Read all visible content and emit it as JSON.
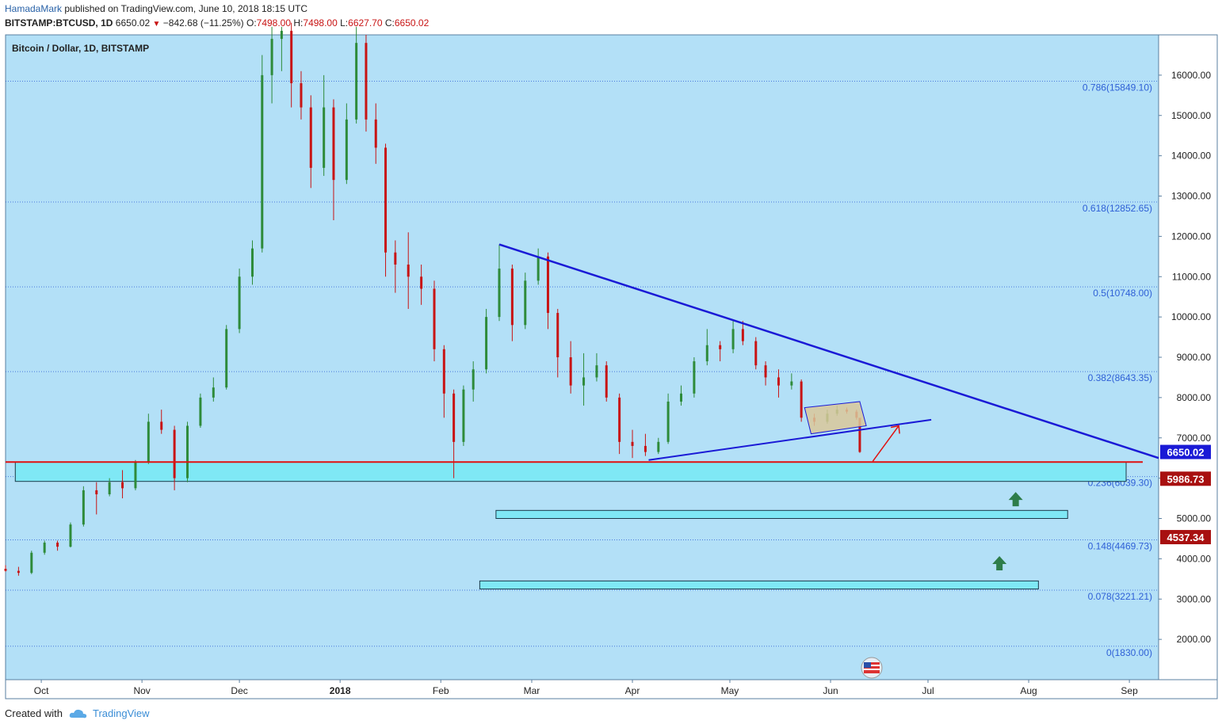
{
  "header": {
    "author": "HamadaMark",
    "published": "published on TradingView.com, June 10, 2018 18:15 UTC",
    "symbol": "BITSTAMP:BTCUSD, 1D",
    "last": "6650.02",
    "change": "−842.68 (−11.25%)",
    "o_label": "O:",
    "o_value": "7498.00",
    "h_label": "H:",
    "h_value": "7498.00",
    "l_label": "L:",
    "l_value": "6627.70",
    "c_label": "C:",
    "c_value": "6650.02"
  },
  "footer": {
    "created_with": "Created with",
    "brand": "TradingView"
  },
  "colors": {
    "plot_bg": "#b3e0f7",
    "candle_up": "#2e8b3a",
    "candle_down": "#c81414",
    "trendline": "#1a1ad6",
    "support_line": "#e01010",
    "zone_fill": "#7fe8f5",
    "fib_label": "#2e5fd6",
    "arrow_green": "#2e7d4a",
    "price_tag_current": "#1a1ad6",
    "price_tag_red": "#a81010",
    "consolidation_fill": "#d9c79a"
  },
  "chart_data": {
    "type": "candlestick",
    "title": "Bitcoin / Dollar, 1D, BITSTAMP",
    "ylim": [
      1000,
      17000
    ],
    "y_ticks": [
      2000,
      3000,
      4000,
      5000,
      6000,
      7000,
      8000,
      9000,
      10000,
      11000,
      12000,
      13000,
      14000,
      15000,
      16000
    ],
    "y_tick_labels": [
      "2000.00",
      "3000.00",
      "4000.00",
      "5000.00",
      "6000.00",
      "7000.00",
      "8000.00",
      "9000.00",
      "10000.00",
      "11000.00",
      "12000.00",
      "13000.00",
      "14000.00",
      "15000.00",
      "16000.00"
    ],
    "x_range": [
      "2017-09-20",
      "2018-09-10"
    ],
    "x_ticks": [
      {
        "date": "2017-10-01",
        "label": "Oct"
      },
      {
        "date": "2017-11-01",
        "label": "Nov"
      },
      {
        "date": "2017-12-01",
        "label": "Dec"
      },
      {
        "date": "2018-01-01",
        "label": "2018"
      },
      {
        "date": "2018-02-01",
        "label": "Feb"
      },
      {
        "date": "2018-03-01",
        "label": "Mar"
      },
      {
        "date": "2018-04-01",
        "label": "Apr"
      },
      {
        "date": "2018-05-01",
        "label": "May"
      },
      {
        "date": "2018-06-01",
        "label": "Jun"
      },
      {
        "date": "2018-07-01",
        "label": "Jul"
      },
      {
        "date": "2018-08-01",
        "label": "Aug"
      },
      {
        "date": "2018-09-01",
        "label": "Sep"
      }
    ],
    "fib_levels": [
      {
        "price": 15849.1,
        "label": "0.786(15849.10)"
      },
      {
        "price": 12852.65,
        "label": "0.618(12852.65)"
      },
      {
        "price": 10748.0,
        "label": "0.5(10748.00)"
      },
      {
        "price": 8643.35,
        "label": "0.382(8643.35)"
      },
      {
        "price": 6039.3,
        "label": "0.236(6039.30)"
      },
      {
        "price": 4469.73,
        "label": "0.148(4469.73)"
      },
      {
        "price": 3221.21,
        "label": "0.078(3221.21)"
      },
      {
        "price": 1830.0,
        "label": "0(1830.00)"
      }
    ],
    "price_tags": [
      {
        "price": 6650.02,
        "label": "6650.02",
        "kind": "current"
      },
      {
        "price": 5986.73,
        "label": "5986.73",
        "kind": "red"
      },
      {
        "price": 4537.34,
        "label": "4537.34",
        "kind": "red"
      }
    ],
    "candles": [
      [
        "2017-09-20",
        3750,
        3840,
        3680,
        3700
      ],
      [
        "2017-09-24",
        3700,
        3800,
        3580,
        3650
      ],
      [
        "2017-09-28",
        3650,
        4200,
        3620,
        4150
      ],
      [
        "2017-10-02",
        4150,
        4450,
        4100,
        4400
      ],
      [
        "2017-10-06",
        4400,
        4450,
        4200,
        4300
      ],
      [
        "2017-10-10",
        4300,
        4900,
        4280,
        4850
      ],
      [
        "2017-10-14",
        4850,
        5800,
        4800,
        5700
      ],
      [
        "2017-10-18",
        5700,
        5900,
        5100,
        5600
      ],
      [
        "2017-10-22",
        5600,
        6000,
        5550,
        5900
      ],
      [
        "2017-10-26",
        5900,
        6200,
        5500,
        5750
      ],
      [
        "2017-10-30",
        5750,
        6450,
        5700,
        6400
      ],
      [
        "2017-11-03",
        6400,
        7600,
        6350,
        7400
      ],
      [
        "2017-11-07",
        7400,
        7700,
        7100,
        7200
      ],
      [
        "2017-11-11",
        7200,
        7300,
        5700,
        6000
      ],
      [
        "2017-11-15",
        6000,
        7400,
        5900,
        7300
      ],
      [
        "2017-11-19",
        7300,
        8100,
        7250,
        8000
      ],
      [
        "2017-11-23",
        8000,
        8500,
        7900,
        8250
      ],
      [
        "2017-11-27",
        8250,
        9800,
        8200,
        9700
      ],
      [
        "2017-12-01",
        9700,
        11200,
        9600,
        11000
      ],
      [
        "2017-12-05",
        11000,
        11900,
        10800,
        11700
      ],
      [
        "2017-12-08",
        11700,
        16500,
        11600,
        16000
      ],
      [
        "2017-12-11",
        16000,
        17200,
        15300,
        16900
      ],
      [
        "2017-12-14",
        16900,
        17200,
        16100,
        17100
      ],
      [
        "2017-12-17",
        17100,
        17300,
        15200,
        15800
      ],
      [
        "2017-12-20",
        15800,
        16100,
        14900,
        15200
      ],
      [
        "2017-12-23",
        15200,
        15500,
        13200,
        13700
      ],
      [
        "2017-12-27",
        13700,
        16000,
        13500,
        15200
      ],
      [
        "2017-12-30",
        15200,
        15400,
        12400,
        13400
      ],
      [
        "2018-01-03",
        13400,
        15300,
        13300,
        14900
      ],
      [
        "2018-01-06",
        14900,
        17200,
        14800,
        16800
      ],
      [
        "2018-01-09",
        16800,
        17000,
        14600,
        14900
      ],
      [
        "2018-01-12",
        14900,
        15300,
        13800,
        14200
      ],
      [
        "2018-01-15",
        14200,
        14300,
        11000,
        11600
      ],
      [
        "2018-01-18",
        11600,
        11900,
        10600,
        11300
      ],
      [
        "2018-01-22",
        11300,
        12100,
        10200,
        11000
      ],
      [
        "2018-01-26",
        11000,
        11300,
        10300,
        10700
      ],
      [
        "2018-01-30",
        10700,
        10900,
        8900,
        9200
      ],
      [
        "2018-02-02",
        9200,
        9300,
        7500,
        8100
      ],
      [
        "2018-02-05",
        8100,
        8200,
        6000,
        6900
      ],
      [
        "2018-02-08",
        6900,
        8300,
        6800,
        8200
      ],
      [
        "2018-02-11",
        8200,
        8900,
        7900,
        8700
      ],
      [
        "2018-02-15",
        8700,
        10200,
        8600,
        10000
      ],
      [
        "2018-02-19",
        10000,
        11800,
        9900,
        11200
      ],
      [
        "2018-02-23",
        11200,
        11300,
        9400,
        9800
      ],
      [
        "2018-02-27",
        9800,
        11100,
        9700,
        10900
      ],
      [
        "2018-03-03",
        10900,
        11700,
        10800,
        11500
      ],
      [
        "2018-03-06",
        11500,
        11600,
        9700,
        10100
      ],
      [
        "2018-03-09",
        10100,
        10200,
        8500,
        9000
      ],
      [
        "2018-03-13",
        9000,
        9400,
        8100,
        8300
      ],
      [
        "2018-03-17",
        8300,
        9100,
        7800,
        8500
      ],
      [
        "2018-03-21",
        8500,
        9100,
        8400,
        8800
      ],
      [
        "2018-03-24",
        8800,
        8900,
        7900,
        8000
      ],
      [
        "2018-03-28",
        8000,
        8100,
        6600,
        6900
      ],
      [
        "2018-04-01",
        6900,
        7200,
        6500,
        6800
      ],
      [
        "2018-04-05",
        6800,
        7100,
        6550,
        6650
      ],
      [
        "2018-04-09",
        6650,
        7000,
        6600,
        6900
      ],
      [
        "2018-04-12",
        6900,
        8100,
        6850,
        7900
      ],
      [
        "2018-04-16",
        7900,
        8300,
        7800,
        8100
      ],
      [
        "2018-04-20",
        8100,
        9000,
        8000,
        8900
      ],
      [
        "2018-04-24",
        8900,
        9700,
        8800,
        9300
      ],
      [
        "2018-04-28",
        9300,
        9400,
        8900,
        9200
      ],
      [
        "2018-05-02",
        9200,
        9900,
        9100,
        9700
      ],
      [
        "2018-05-05",
        9700,
        9900,
        9300,
        9400
      ],
      [
        "2018-05-09",
        9400,
        9500,
        8700,
        8800
      ],
      [
        "2018-05-12",
        8800,
        8900,
        8300,
        8500
      ],
      [
        "2018-05-16",
        8500,
        8700,
        8000,
        8300
      ],
      [
        "2018-05-20",
        8300,
        8600,
        8200,
        8400
      ],
      [
        "2018-05-23",
        8400,
        8450,
        7400,
        7500
      ],
      [
        "2018-05-27",
        7500,
        7600,
        7300,
        7400
      ],
      [
        "2018-05-31",
        7400,
        7700,
        7350,
        7600
      ],
      [
        "2018-06-03",
        7600,
        7800,
        7550,
        7700
      ],
      [
        "2018-06-06",
        7700,
        7750,
        7600,
        7650
      ],
      [
        "2018-06-09",
        7650,
        7700,
        7450,
        7500
      ],
      [
        "2018-06-10",
        7498,
        7498,
        6627.7,
        6650.02
      ]
    ]
  }
}
